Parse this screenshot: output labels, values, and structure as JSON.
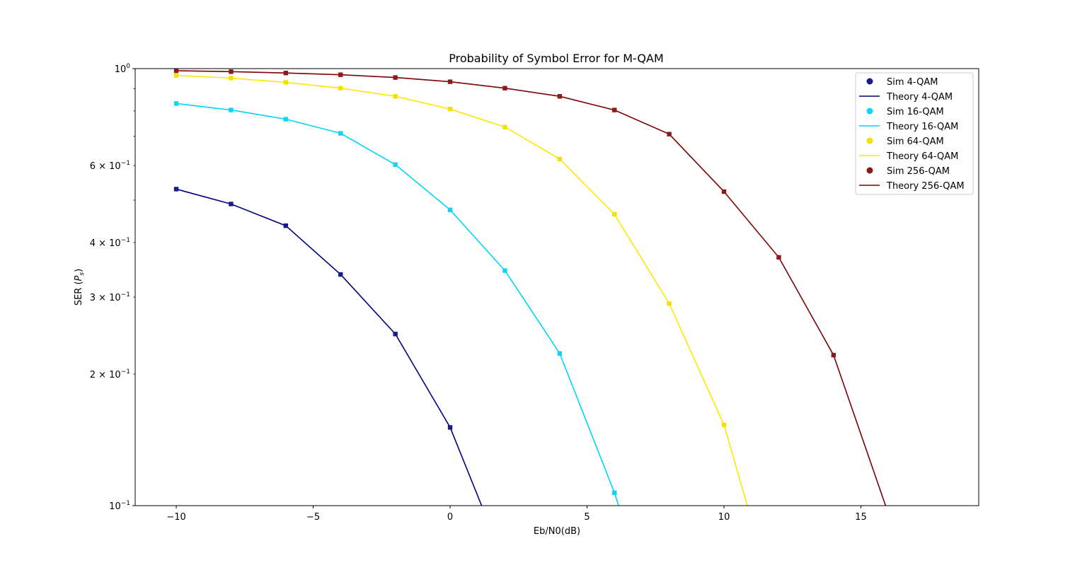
{
  "chart_data": {
    "type": "line",
    "title": "Probability of Symbol Error for M-QAM",
    "xlabel": "Eb/N0(dB)",
    "ylabel": "SER (",
    "ylabel_math": "P",
    "ylabel_sub": "s",
    "ylabel_end": ")",
    "yscale": "log",
    "xlim": [
      -11.5,
      19.3
    ],
    "ylim": [
      0.1,
      1.0
    ],
    "grid": false,
    "legend_position": "top-right",
    "x_ticks": [
      {
        "value": -10,
        "label": "−10"
      },
      {
        "value": -5,
        "label": "−5"
      },
      {
        "value": 0,
        "label": "0"
      },
      {
        "value": 5,
        "label": "5"
      },
      {
        "value": 10,
        "label": "10"
      },
      {
        "value": 15,
        "label": "15"
      }
    ],
    "y_ticks_major": [
      {
        "value": 0.1,
        "base": "10",
        "exp": "−1"
      },
      {
        "value": 1.0,
        "base": "10",
        "exp": "0"
      }
    ],
    "y_ticks_minor": [
      {
        "value": 0.2,
        "mant": "2",
        "base": "10",
        "exp": "−1"
      },
      {
        "value": 0.3,
        "mant": "3",
        "base": "10",
        "exp": "−1"
      },
      {
        "value": 0.4,
        "mant": "4",
        "base": "10",
        "exp": "−1"
      },
      {
        "value": 0.6,
        "mant": "6",
        "base": "10",
        "exp": "−1"
      }
    ],
    "y_ticks_minor_unlabeled": [
      0.5,
      0.7,
      0.8,
      0.9
    ],
    "series": [
      {
        "name": "Sim 4-QAM",
        "kind": "sim",
        "color": "#1a1a8c",
        "x": [
          -10,
          -8,
          -6,
          -4,
          -2,
          0
        ],
        "y": [
          0.53,
          0.49,
          0.437,
          0.338,
          0.247,
          0.151
        ]
      },
      {
        "name": "Theory 4-QAM",
        "kind": "theory",
        "color": "#00007f",
        "x": [
          -10,
          -8,
          -6,
          -4,
          -2,
          0,
          1.15
        ],
        "y": [
          0.53,
          0.49,
          0.437,
          0.338,
          0.247,
          0.151,
          0.1
        ]
      },
      {
        "name": "Sim 16-QAM",
        "kind": "sim",
        "color": "#12d3f0",
        "x": [
          -10,
          -8,
          -6,
          -4,
          -2,
          0,
          2,
          4,
          6
        ],
        "y": [
          0.832,
          0.804,
          0.766,
          0.711,
          0.603,
          0.475,
          0.345,
          0.223,
          0.107
        ]
      },
      {
        "name": "Theory 16-QAM",
        "kind": "theory",
        "color": "#00d4ff",
        "x": [
          -10,
          -8,
          -6,
          -4,
          -2,
          0,
          2,
          4,
          6,
          6.15
        ],
        "y": [
          0.832,
          0.804,
          0.766,
          0.711,
          0.603,
          0.475,
          0.345,
          0.223,
          0.107,
          0.1
        ]
      },
      {
        "name": "Sim 64-QAM",
        "kind": "sim",
        "color": "#f5e100",
        "x": [
          -10,
          -8,
          -6,
          -4,
          -2,
          0,
          2,
          4,
          6,
          8,
          10
        ],
        "y": [
          0.965,
          0.951,
          0.93,
          0.902,
          0.864,
          0.808,
          0.735,
          0.621,
          0.464,
          0.29,
          0.153
        ]
      },
      {
        "name": "Theory 64-QAM",
        "kind": "theory",
        "color": "#ffe600",
        "x": [
          -10,
          -8,
          -6,
          -4,
          -2,
          0,
          2,
          4,
          6,
          8,
          10,
          10.85
        ],
        "y": [
          0.965,
          0.951,
          0.93,
          0.902,
          0.864,
          0.808,
          0.735,
          0.621,
          0.464,
          0.29,
          0.153,
          0.1
        ]
      },
      {
        "name": "Sim 256-QAM",
        "kind": "sim",
        "color": "#8c1a1a",
        "x": [
          -10,
          -8,
          -6,
          -4,
          -2,
          0,
          2,
          4,
          6,
          8,
          10,
          12,
          14
        ],
        "y": [
          0.989,
          0.984,
          0.977,
          0.968,
          0.954,
          0.933,
          0.902,
          0.864,
          0.804,
          0.708,
          0.523,
          0.37,
          0.221
        ]
      },
      {
        "name": "Theory 256-QAM",
        "kind": "theory",
        "color": "#7f0000",
        "x": [
          -10,
          -8,
          -6,
          -4,
          -2,
          0,
          2,
          4,
          6,
          8,
          10,
          12,
          14,
          15.9
        ],
        "y": [
          0.989,
          0.984,
          0.977,
          0.968,
          0.954,
          0.933,
          0.902,
          0.864,
          0.804,
          0.708,
          0.523,
          0.37,
          0.221,
          0.1
        ]
      }
    ]
  }
}
